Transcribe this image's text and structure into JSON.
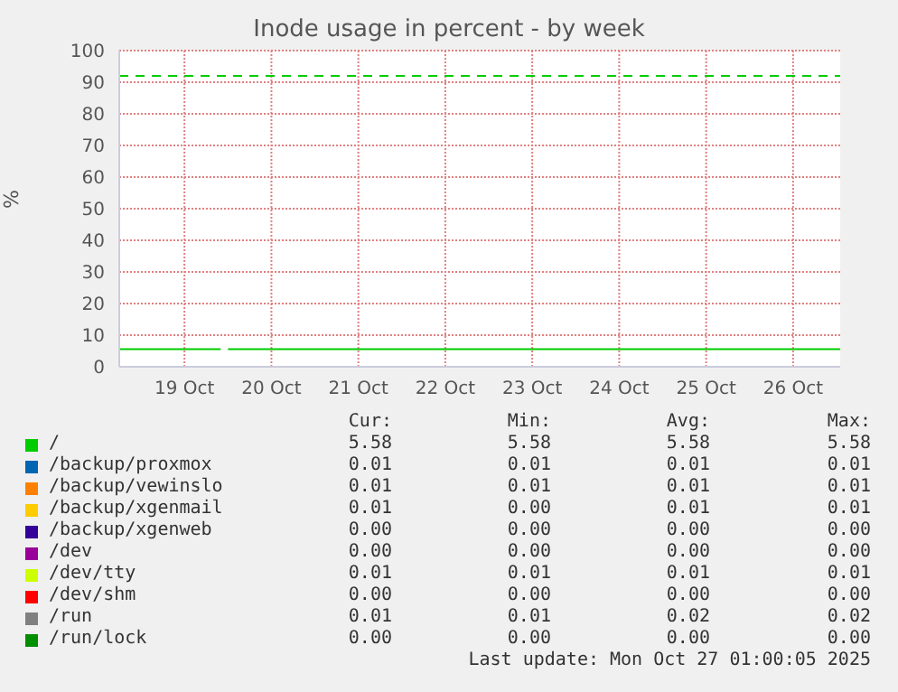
{
  "chart_data": {
    "type": "line",
    "title": "Inode usage in percent - by week",
    "ylabel": "%",
    "x": [
      "2025-10-18T18:00",
      "2025-10-19T22:00",
      "2025-10-19T23:00",
      "2025-10-20T00:00",
      "2025-10-27T01:00"
    ],
    "xlim": [
      "2025-10-18T18:00",
      "2025-10-27T01:00"
    ],
    "xticks": [
      {
        "value": "2025-10-19T12:00",
        "label": "19 Oct"
      },
      {
        "value": "2025-10-20T12:00",
        "label": "20 Oct"
      },
      {
        "value": "2025-10-21T12:00",
        "label": "21 Oct"
      },
      {
        "value": "2025-10-22T12:00",
        "label": "22 Oct"
      },
      {
        "value": "2025-10-23T12:00",
        "label": "23 Oct"
      },
      {
        "value": "2025-10-24T12:00",
        "label": "24 Oct"
      },
      {
        "value": "2025-10-25T12:00",
        "label": "25 Oct"
      },
      {
        "value": "2025-10-26T12:00",
        "label": "26 Oct"
      }
    ],
    "ylim": [
      0,
      100
    ],
    "yticks": [
      0,
      10,
      20,
      30,
      40,
      50,
      60,
      70,
      80,
      90,
      100
    ],
    "grid": true,
    "legend": "bottom",
    "marker": "none",
    "line_style": "solid",
    "ref_lines": [
      {
        "axis": "y",
        "value": 92,
        "color": "#00cc00",
        "line_style": "dashed"
      }
    ],
    "series": [
      {
        "name": "/",
        "color": "#00cc00",
        "values": [
          5.58,
          5.58,
          null,
          5.58,
          5.58
        ]
      },
      {
        "name": "/backup/proxmox",
        "color": "#0066b3",
        "values": [
          null,
          null,
          null,
          null,
          null
        ]
      },
      {
        "name": "/backup/vewinslo",
        "color": "#ff8000",
        "values": [
          null,
          null,
          null,
          null,
          null
        ]
      },
      {
        "name": "/backup/xgenmail",
        "color": "#ffcc00",
        "values": [
          null,
          null,
          null,
          null,
          null
        ]
      },
      {
        "name": "/backup/xgenweb",
        "color": "#330099",
        "values": [
          null,
          null,
          null,
          null,
          null
        ]
      },
      {
        "name": "/dev",
        "color": "#990099",
        "values": [
          null,
          null,
          null,
          null,
          null
        ]
      },
      {
        "name": "/dev/tty",
        "color": "#ccff00",
        "values": [
          null,
          null,
          null,
          null,
          null
        ]
      },
      {
        "name": "/dev/shm",
        "color": "#ff0000",
        "values": [
          null,
          null,
          null,
          null,
          null
        ]
      },
      {
        "name": "/run",
        "color": "#808080",
        "values": [
          null,
          null,
          null,
          null,
          null
        ]
      },
      {
        "name": "/run/lock",
        "color": "#008f00",
        "values": [
          null,
          null,
          null,
          null,
          null
        ]
      }
    ],
    "annotations": [
      "Cur:",
      "Min:",
      "Avg:",
      "Max:",
      "5.58",
      "5.58",
      "5.58",
      "5.58",
      "0.01",
      "0.01",
      "0.01",
      "0.01",
      "0.01",
      "0.01",
      "0.01",
      "0.01",
      "0.01",
      "0.00",
      "0.01",
      "0.01",
      "0.00",
      "0.00",
      "0.00",
      "0.00",
      "0.00",
      "0.00",
      "0.00",
      "0.00",
      "0.01",
      "0.01",
      "0.01",
      "0.01",
      "0.00",
      "0.00",
      "0.00",
      "0.00",
      "0.01",
      "0.01",
      "0.02",
      "0.02",
      "0.00",
      "0.00",
      "0.00",
      "0.00",
      "Last update: Mon Oct 27 01:00:05 2025"
    ]
  }
}
